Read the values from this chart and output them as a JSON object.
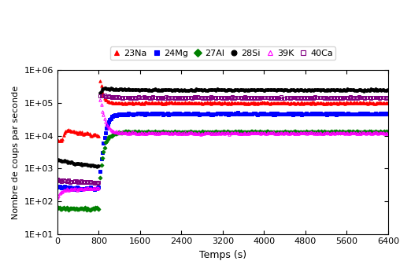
{
  "xlabel": "Temps (s)",
  "ylabel": "Nombre de coups par seconde",
  "xlim": [
    0,
    6400
  ],
  "ylim_log": [
    10,
    1000000
  ],
  "yticks": [
    10,
    100,
    1000,
    10000,
    100000,
    1000000
  ],
  "ytick_labels": [
    "1E+01",
    "1E+02",
    "1E+03",
    "1E+04",
    "1E+05",
    "1E+06"
  ],
  "xticks": [
    0,
    800,
    1600,
    2400,
    3200,
    4000,
    4800,
    5600,
    6400
  ],
  "series": {
    "23Na": {
      "color": "red",
      "marker": "^",
      "fillstyle": "full",
      "phase1_t": [
        0,
        80,
        160,
        240,
        320,
        400,
        480,
        560,
        640,
        720,
        800
      ],
      "phase1_v": [
        7000,
        6500,
        14000,
        14000,
        13000,
        12500,
        12000,
        11500,
        11000,
        10500,
        10000
      ],
      "phase2_t": [
        830,
        870,
        920,
        970,
        1020,
        1070,
        1120,
        1200,
        1300,
        1500,
        1800,
        2200,
        2800,
        3600,
        4400,
        5200,
        6000,
        6400
      ],
      "phase2_v": [
        500000,
        200000,
        130000,
        115000,
        108000,
        103000,
        100000,
        100000,
        100000,
        100000,
        100000,
        100000,
        100000,
        100000,
        100000,
        100000,
        100000,
        100000
      ]
    },
    "24Mg": {
      "color": "blue",
      "marker": "s",
      "fillstyle": "full",
      "phase1_t": [
        0,
        80,
        160,
        240,
        320,
        400,
        480,
        560,
        640,
        720,
        800
      ],
      "phase1_v": [
        280,
        270,
        260,
        255,
        250,
        245,
        245,
        245,
        250,
        250,
        255
      ],
      "phase2_t": [
        830,
        870,
        920,
        980,
        1050,
        1120,
        1200,
        1400,
        1600,
        2000,
        2500,
        3000,
        4000,
        5000,
        6000,
        6400
      ],
      "phase2_v": [
        800,
        3000,
        10000,
        25000,
        38000,
        43000,
        45000,
        46000,
        46500,
        47000,
        47000,
        47000,
        47000,
        47000,
        47000,
        47000
      ]
    },
    "27Al": {
      "color": "green",
      "marker": "D",
      "fillstyle": "full",
      "phase1_t": [
        0,
        80,
        160,
        240,
        320,
        400,
        480,
        560,
        640,
        720,
        800
      ],
      "phase1_v": [
        60,
        60,
        60,
        60,
        60,
        60,
        60,
        60,
        60,
        60,
        60
      ],
      "phase2_t": [
        830,
        870,
        930,
        1000,
        1080,
        1160,
        1280,
        1500,
        1800,
        2200,
        2800,
        3600,
        4400,
        5200,
        6000,
        6400
      ],
      "phase2_v": [
        500,
        2000,
        6000,
        9000,
        11000,
        12000,
        13000,
        13000,
        13000,
        13000,
        13000,
        13000,
        13000,
        13000,
        13000,
        13000
      ]
    },
    "28Si": {
      "color": "black",
      "marker": "o",
      "fillstyle": "full",
      "phase1_t": [
        0,
        80,
        160,
        240,
        320,
        400,
        480,
        560,
        640,
        720,
        800
      ],
      "phase1_v": [
        1800,
        1700,
        1600,
        1500,
        1400,
        1400,
        1350,
        1300,
        1250,
        1200,
        1200
      ],
      "phase2_t": [
        830,
        870,
        920,
        1000,
        1100,
        1200,
        1400,
        1600,
        2000,
        2800,
        3600,
        4400,
        5200,
        6000,
        6400
      ],
      "phase2_v": [
        200000,
        270000,
        280000,
        270000,
        265000,
        260000,
        255000,
        252000,
        250000,
        250000,
        250000,
        250000,
        250000,
        250000,
        250000
      ]
    },
    "39K": {
      "color": "magenta",
      "marker": "^",
      "fillstyle": "none",
      "phase1_t": [
        0,
        80,
        160,
        240,
        320,
        400,
        480,
        560,
        640,
        720,
        800
      ],
      "phase1_v": [
        130,
        200,
        220,
        230,
        235,
        240,
        245,
        250,
        250,
        255,
        260
      ],
      "phase2_t": [
        830,
        870,
        920,
        980,
        1060,
        1140,
        1250,
        1400,
        1600,
        2000,
        2500,
        3000,
        4000,
        5000,
        6000,
        6400
      ],
      "phase2_v": [
        130000,
        55000,
        28000,
        18000,
        14000,
        13000,
        12500,
        12000,
        12000,
        12000,
        12000,
        12000,
        12000,
        12000,
        12000,
        12000
      ]
    },
    "40Ca": {
      "color": "purple",
      "marker": "s",
      "fillstyle": "none",
      "phase1_t": [
        0,
        80,
        160,
        240,
        320,
        400,
        480,
        560,
        640,
        720,
        800
      ],
      "phase1_v": [
        450,
        430,
        420,
        410,
        400,
        395,
        390,
        385,
        380,
        375,
        370
      ],
      "phase2_t": [
        830,
        870,
        920,
        1000,
        1100,
        1200,
        1400,
        1800,
        2400,
        3200,
        4000,
        5000,
        6000,
        6400
      ],
      "phase2_v": [
        160000,
        165000,
        160000,
        155000,
        150000,
        148000,
        146000,
        145000,
        145000,
        145000,
        145000,
        145000,
        145000,
        145000
      ]
    }
  },
  "legend_entries": [
    "23Na",
    "24Mg",
    "27Al",
    "28Si",
    "39K",
    "40Ca"
  ],
  "legend_colors": [
    "red",
    "blue",
    "green",
    "black",
    "magenta",
    "purple"
  ],
  "legend_markers": [
    "^",
    "s",
    "D",
    "o",
    "^",
    "s"
  ],
  "legend_fillstyles": [
    "full",
    "full",
    "full",
    "full",
    "none",
    "none"
  ]
}
